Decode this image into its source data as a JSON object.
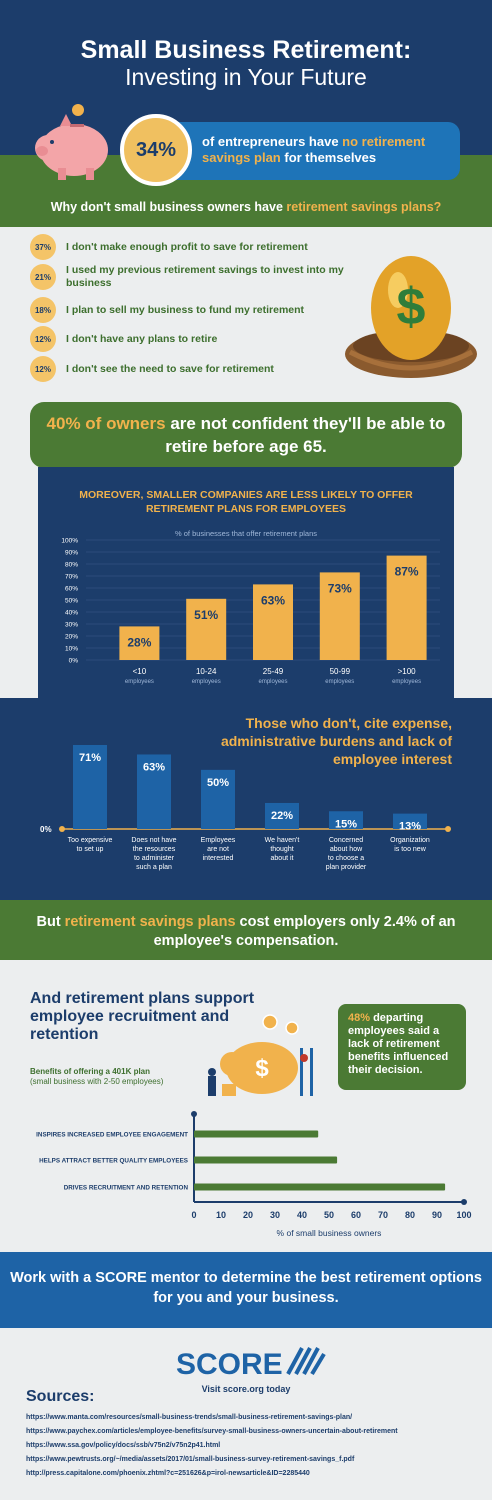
{
  "header": {
    "title_line1": "Small Business Retirement:",
    "title_line2": "Investing in Your Future"
  },
  "stat": {
    "percent": "34%",
    "text_a": "of entrepreneurs have ",
    "text_b": "no retirement savings plan",
    "text_c": " for themselves"
  },
  "why": {
    "question_a": "Why don't small business owners have ",
    "question_b": "retirement savings plans?",
    "reasons": [
      {
        "pct": "37%",
        "text": "I don't make enough profit to save for retirement"
      },
      {
        "pct": "21%",
        "text": "I used my previous retirement savings to invest into my business"
      },
      {
        "pct": "18%",
        "text": "I plan to sell my business to fund my retirement"
      },
      {
        "pct": "12%",
        "text": "I don't have any plans to retire"
      },
      {
        "pct": "12%",
        "text": "I don't see the need to save for retirement"
      }
    ]
  },
  "confidence": {
    "hl": "40% of owners",
    "text": " are not confident they'll be able to retire before age 65."
  },
  "chart1_title_line1": "MOREOVER, SMALLER COMPANIES ARE LESS LIKELY TO OFFER",
  "chart1_title_line2": "RETIREMENT PLANS FOR EMPLOYEES",
  "chart2_title": "Those who don't, cite expense, administrative burdens and lack of employee interest",
  "cost": {
    "a": "But ",
    "hl": "retirement savings plans",
    "b": " cost employers only 2.4% of an employee's compensation."
  },
  "recruitment": {
    "title": "And retirement plans support employee recruitment and retention",
    "sub1": "Benefits of offering a 401K plan",
    "sub2": "(small business with 2-50 employees)",
    "box_hl": "48%",
    "box_text": " departing employees said a lack of retirement benefits influenced their decision."
  },
  "cta": "Work with a SCORE mentor to determine the best retirement options for you and your business.",
  "footer": {
    "logo": "SCORE",
    "visit": "Visit score.org today",
    "sources_heading": "Sources:",
    "sources": [
      "https://www.manta.com/resources/small-business-trends/small-business-retirement-savings-plan/",
      "https://www.paychex.com/articles/employee-benefits/survey-small-business-owners-uncertain-about-retirement",
      "https://www.ssa.gov/policy/docs/ssb/v75n2/v75n2p41.html",
      "https://www.pewtrusts.org/~/media/assets/2017/01/small-business-survey-retirement-savings_f.pdf",
      "http://press.capitalone.com/phoenix.zhtml?c=251626&p=irol-newsarticle&ID=2285440"
    ]
  },
  "colors": {
    "navy": "#1c3d6b",
    "green": "#4b7a34",
    "orange": "#f1b24c",
    "blue": "#1e74b8",
    "bar_blue": "#1e63a6"
  },
  "chart_data": [
    {
      "type": "bar",
      "subtitle": "% of businesses that offer retirement plans",
      "categories": [
        "<10",
        "10-24",
        "25-49",
        "50-99",
        ">100"
      ],
      "category_sub": "employees",
      "values": [
        28,
        51,
        63,
        73,
        87
      ],
      "labels": [
        "28%",
        "51%",
        "63%",
        "73%",
        "87%"
      ],
      "yticks": [
        "0%",
        "10%",
        "20%",
        "30%",
        "40%",
        "50%",
        "60%",
        "70%",
        "80%",
        "90%",
        "100%"
      ],
      "ylim": [
        0,
        100
      ]
    },
    {
      "type": "bar",
      "categories": [
        "Too expensive to set up",
        "Does not have the resources to administer such a plan",
        "Employees are not interested",
        "We haven't thought about it",
        "Concerned about how to choose a plan provider",
        "Organization is too new"
      ],
      "category_lines": [
        [
          "Too expensive",
          "to set up"
        ],
        [
          "Does not have",
          "the resources",
          "to administer",
          "such a plan"
        ],
        [
          "Employees",
          "are not",
          "interested"
        ],
        [
          "We haven't",
          "thought",
          "about it"
        ],
        [
          "Concerned",
          "about how",
          "to choose a",
          "plan provider"
        ],
        [
          "Organization",
          "is too new"
        ]
      ],
      "values": [
        71,
        63,
        50,
        22,
        15,
        13
      ],
      "labels": [
        "71%",
        "63%",
        "50%",
        "22%",
        "15%",
        "13%"
      ],
      "baseline_label": "0%"
    },
    {
      "type": "bar",
      "orientation": "horizontal",
      "categories": [
        "INSPIRES INCREASED EMPLOYEE ENGAGEMENT",
        "HELPS ATTRACT BETTER QUALITY EMPLOYEES",
        "DRIVES RECRUITMENT AND RETENTION"
      ],
      "values": [
        46,
        53,
        93
      ],
      "xticks": [
        "0",
        "10",
        "20",
        "30",
        "40",
        "50",
        "60",
        "70",
        "80",
        "90",
        "100"
      ],
      "xlim": [
        0,
        100
      ],
      "xlabel": "% of small business owners"
    }
  ]
}
